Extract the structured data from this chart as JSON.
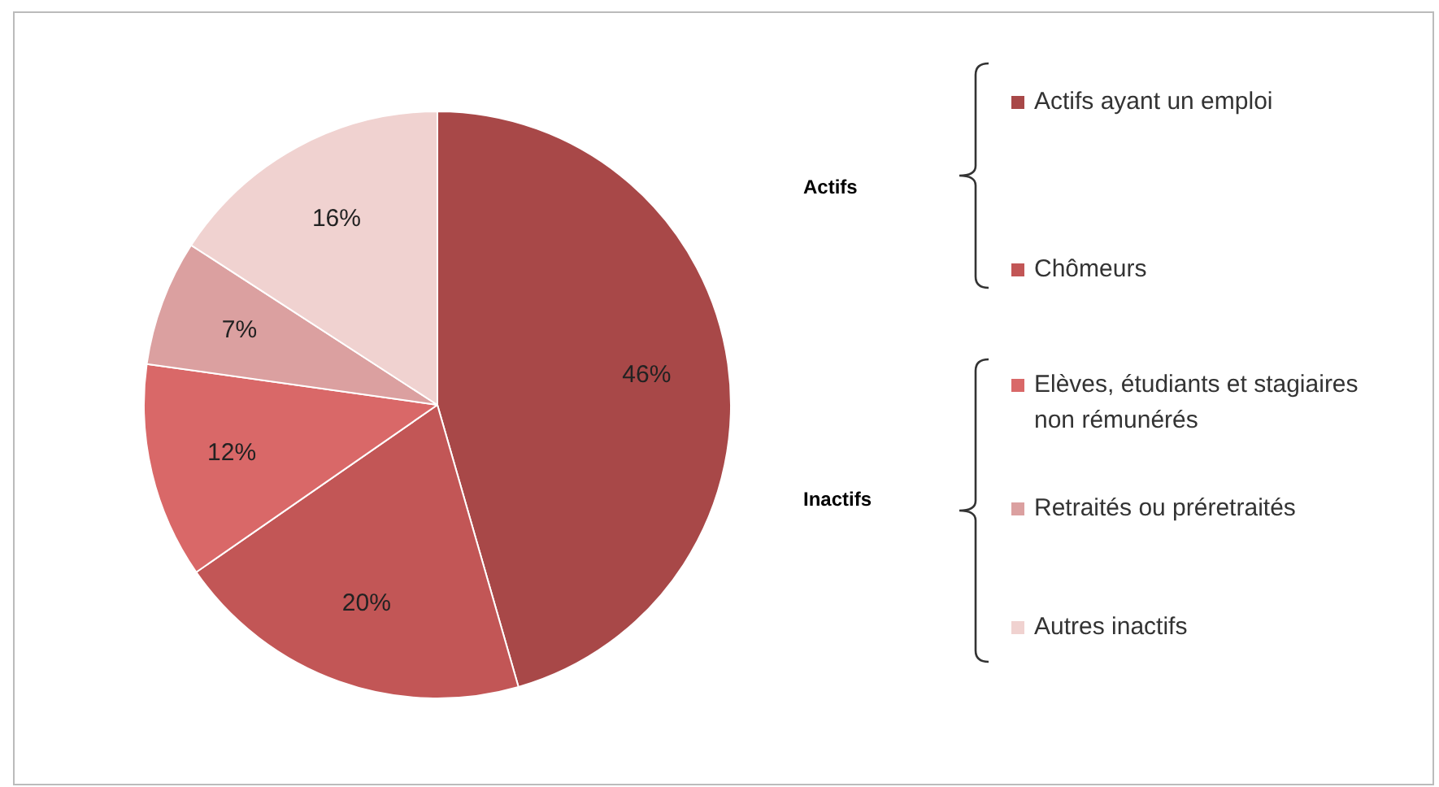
{
  "chart_data": {
    "type": "pie",
    "categories": [
      "Actifs ayant un emploi",
      "Chômeurs",
      "Elèves, étudiants et stagiaires non rémunérés",
      "Retraités ou préretraités",
      "Autres inactifs"
    ],
    "values": [
      46,
      20,
      12,
      7,
      16
    ],
    "colors": [
      "#a84848",
      "#c25656",
      "#d96868",
      "#dba0a0",
      "#f0d2d0"
    ],
    "value_labels": [
      "46%",
      "20%",
      "12%",
      "7%",
      "16%"
    ],
    "legend": "right",
    "annotations": [
      "Actifs",
      "Inactifs"
    ]
  }
}
